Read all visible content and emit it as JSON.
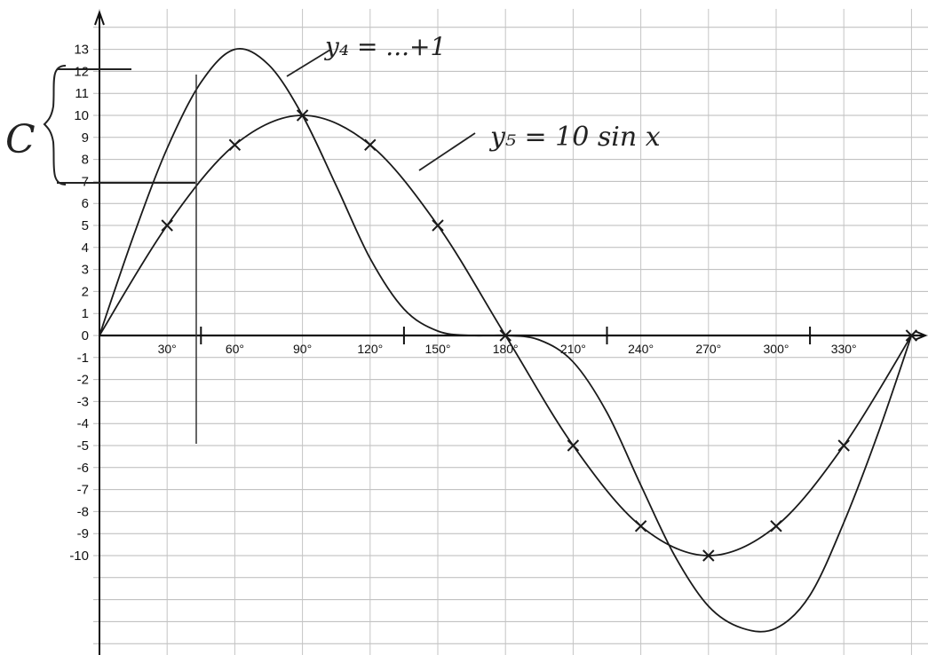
{
  "chart_data": {
    "type": "line",
    "x": [
      0,
      30,
      60,
      90,
      120,
      150,
      180,
      210,
      240,
      270,
      300,
      330,
      360
    ],
    "x_tick_labels": [
      "30°",
      "60°",
      "90°",
      "120°",
      "150°",
      "180°",
      "210°",
      "240°",
      "270°",
      "300°",
      "330°"
    ],
    "y_tick_labels": [
      "13",
      "12",
      "11",
      "10",
      "9",
      "8",
      "7",
      "6",
      "5",
      "4",
      "3",
      "2",
      "1",
      "0",
      "-1",
      "-2",
      "-3",
      "-4",
      "-5",
      "-6",
      "-7",
      "-8",
      "-9",
      "-10"
    ],
    "ylim": [
      -13,
      13
    ],
    "xlim": [
      0,
      360
    ],
    "grid": true,
    "annotations": {
      "bracket_letter": "C",
      "label_y4": "y₄ = ...+1",
      "label_y5": "y₅ = 10 sin x"
    },
    "series": [
      {
        "name": "y₅ = 10 sin x",
        "x": [
          0,
          30,
          60,
          90,
          120,
          150,
          180,
          210,
          240,
          270,
          300,
          330,
          360
        ],
        "values": [
          0,
          5,
          8.66,
          10,
          8.66,
          5,
          0,
          -5,
          -8.66,
          -10,
          -8.66,
          -5,
          0
        ],
        "markers": true
      },
      {
        "name": "y₄",
        "x": [
          0,
          15,
          30,
          45,
          60,
          75,
          90,
          105,
          120,
          135,
          150,
          165,
          180,
          195,
          210,
          225,
          240,
          255,
          270,
          285,
          300,
          315,
          330,
          345,
          360
        ],
        "values": [
          0,
          4.5,
          8.5,
          11.5,
          13,
          12.3,
          10,
          6.8,
          3.5,
          1.2,
          0.2,
          0,
          0,
          -0.2,
          -1.2,
          -3.5,
          -6.8,
          -10,
          -12.3,
          -13.3,
          -13.3,
          -11.8,
          -8.5,
          -4.5,
          0
        ],
        "markers": false
      }
    ]
  }
}
